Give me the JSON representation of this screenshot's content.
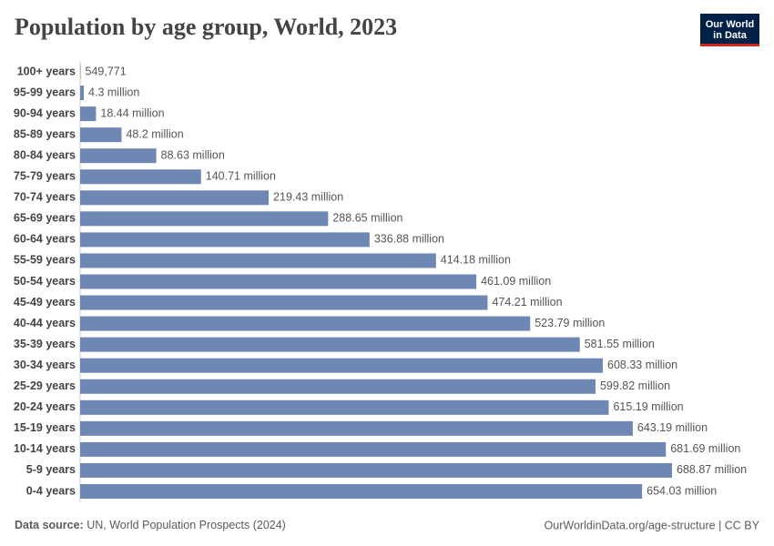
{
  "chart_data": {
    "type": "bar",
    "orientation": "horizontal",
    "title": "Population by age group, World, 2023",
    "categories": [
      "100+ years",
      "95-99 years",
      "90-94 years",
      "85-89 years",
      "80-84 years",
      "75-79 years",
      "70-74 years",
      "65-69 years",
      "60-64 years",
      "55-59 years",
      "50-54 years",
      "45-49 years",
      "40-44 years",
      "35-39 years",
      "30-34 years",
      "25-29 years",
      "20-24 years",
      "15-19 years",
      "10-14 years",
      "5-9 years",
      "0-4 years"
    ],
    "values": [
      549771,
      4300000,
      18440000,
      48200000,
      88630000,
      140710000,
      219430000,
      288650000,
      336880000,
      414180000,
      461090000,
      474210000,
      523790000,
      581550000,
      608330000,
      599820000,
      615190000,
      643190000,
      681690000,
      688870000,
      654030000
    ],
    "value_labels": [
      "549,771",
      "4.3 million",
      "18.44 million",
      "48.2 million",
      "88.63 million",
      "140.71 million",
      "219.43 million",
      "288.65 million",
      "336.88 million",
      "414.18 million",
      "461.09 million",
      "474.21 million",
      "523.79 million",
      "581.55 million",
      "608.33 million",
      "599.82 million",
      "615.19 million",
      "643.19 million",
      "681.69 million",
      "688.87 million",
      "654.03 million"
    ],
    "color": "#6e87b3"
  },
  "logo": [
    "Our World",
    "in Data"
  ],
  "footer": {
    "source_label": "Data source:",
    "source": "UN, World Population Prospects (2024)",
    "link": "OurWorldinData.org/age-structure | CC BY"
  }
}
